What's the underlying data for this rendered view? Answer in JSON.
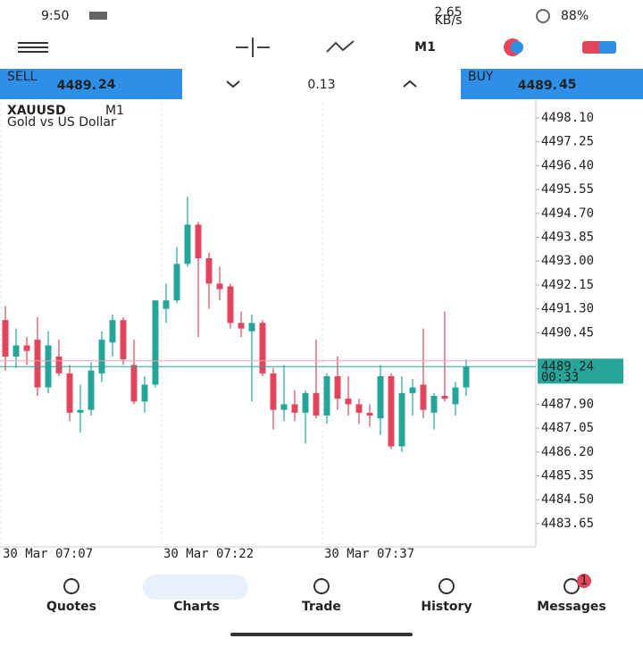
{
  "status_bar": {
    "time": "9:50",
    "net_speed": "2.65",
    "net_unit": "KB/s",
    "battery": "88%"
  },
  "toolbar": {
    "timeframe": "M1"
  },
  "quote_bar": {
    "sell_label": "SELL",
    "sell_price_main": "4489.",
    "sell_price_big": "24",
    "lot": "0.13",
    "buy_label": "BUY",
    "buy_price_main": "4489.",
    "buy_price_big": "45"
  },
  "chart_data": {
    "type": "candlestick",
    "symbol": "XAUUSD",
    "timeframe": "M1",
    "description": "Gold vs US Dollar",
    "up_color": "#26a69a",
    "down_color": "#e0475c",
    "open": [
      4490.9,
      4489.6,
      4490.0,
      4490.2,
      4488.5,
      4489.6,
      4489.0,
      4487.6,
      4487.7,
      4489.0,
      4490.1,
      4490.9,
      4489.3,
      4488.0,
      4488.6,
      4491.3,
      4491.6,
      4492.9,
      4494.3,
      4493.1,
      4492.2,
      4492.1,
      4490.8,
      4490.5,
      4490.8,
      4489.0,
      4487.7,
      4487.9,
      4487.6,
      4488.3,
      4487.5,
      4488.9,
      4488.1,
      4487.9,
      4487.6,
      4487.4,
      4488.9,
      4486.4,
      4488.3,
      4488.6,
      4487.6,
      4488.2,
      4487.9,
      4488.5
    ],
    "high": [
      4491.4,
      4490.6,
      4490.3,
      4491.0,
      4490.5,
      4490.2,
      4489.3,
      4488.6,
      4489.4,
      4490.5,
      4491.1,
      4491.0,
      4490.2,
      4488.9,
      4491.6,
      4492.2,
      4493.5,
      4495.3,
      4494.4,
      4493.3,
      4492.8,
      4492.2,
      4491.2,
      4491.1,
      4490.9,
      4489.2,
      4489.3,
      4488.4,
      4488.4,
      4490.2,
      4489.0,
      4489.6,
      4488.9,
      4488.1,
      4487.9,
      4489.3,
      4489.0,
      4488.9,
      4488.8,
      4490.6,
      4488.3,
      4491.2,
      4488.7,
      4489.5
    ],
    "low": [
      4489.1,
      4489.2,
      4489.3,
      4488.2,
      4488.3,
      4488.9,
      4487.3,
      4486.9,
      4487.5,
      4488.7,
      4489.6,
      4489.3,
      4487.9,
      4487.6,
      4488.5,
      4490.8,
      4491.5,
      4492.8,
      4490.3,
      4491.3,
      4491.6,
      4490.6,
      4490.3,
      4488.0,
      4488.9,
      4487.0,
      4487.3,
      4487.3,
      4486.5,
      4487.4,
      4487.2,
      4487.7,
      4487.5,
      4487.2,
      4487.1,
      4486.8,
      4486.3,
      4486.2,
      4487.5,
      4487.4,
      4487.0,
      4488.0,
      4487.5,
      4488.2
    ],
    "close": [
      4489.6,
      4490.0,
      4489.8,
      4488.5,
      4490.0,
      4489.0,
      4487.6,
      4487.7,
      4489.1,
      4490.2,
      4490.9,
      4489.5,
      4488.0,
      4488.6,
      4491.6,
      4491.6,
      4492.9,
      4494.3,
      4493.1,
      4492.2,
      4492.0,
      4490.8,
      4490.6,
      4490.8,
      4489.0,
      4487.7,
      4487.9,
      4487.6,
      4488.3,
      4487.5,
      4488.9,
      4488.1,
      4487.9,
      4487.6,
      4487.5,
      4488.9,
      4486.4,
      4488.3,
      4488.5,
      4487.7,
      4488.2,
      4488.1,
      4488.5,
      4489.24
    ],
    "bid": 4489.24,
    "ask": 4489.45,
    "countdown": "00:33",
    "ylim": [
      4482.82,
      4498.64
    ],
    "yticks": [
      {
        "value": 4498.1,
        "label": "4498.10"
      },
      4497.25,
      {
        "value": 4496.4,
        "label": "4496.40"
      },
      4495.55,
      {
        "value": 4494.7,
        "label": "4494.70"
      },
      4493.85,
      {
        "value": 4493,
        "label": "4493.00"
      },
      4492.15,
      {
        "value": 4491.3,
        "label": "4491.30"
      },
      4490.45,
      {
        "value": 4487.9,
        "label": "4487.90"
      },
      4487.05,
      {
        "value": 4486.2,
        "label": "4486.20"
      },
      4485.35,
      {
        "value": 4484.5,
        "label": "4484.50"
      },
      4483.65
    ],
    "xticks": [
      {
        "value": 0,
        "label": "30 Mar 07:07"
      },
      {
        "value": 15,
        "label": "30 Mar 07:22"
      },
      {
        "value": 30,
        "label": "30 Mar 07:37"
      }
    ]
  },
  "nav": [
    {
      "label": "Quotes"
    },
    {
      "label": "Charts"
    },
    {
      "label": "Trade"
    },
    {
      "label": "History"
    },
    {
      "label": "Messages",
      "badge": "1"
    }
  ]
}
